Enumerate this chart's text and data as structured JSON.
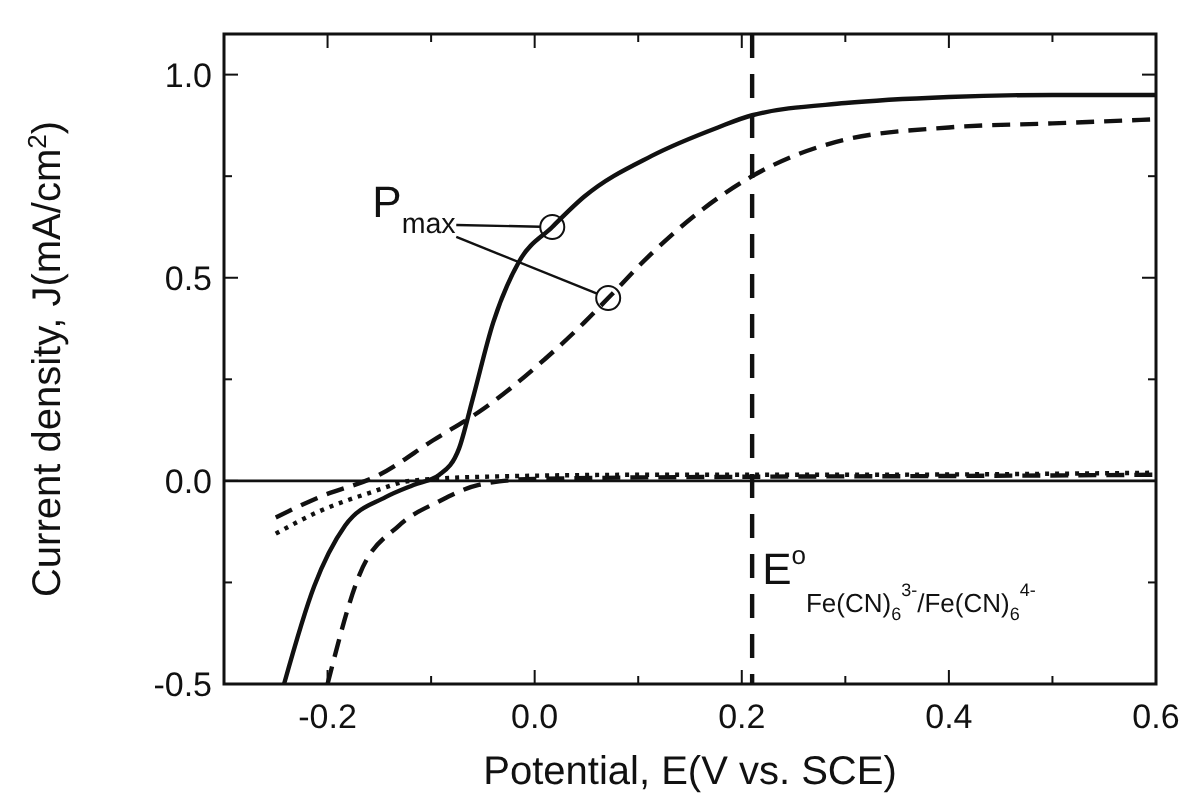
{
  "chart_data": {
    "type": "line",
    "xlabel": "Potential, E(V vs. SCE)",
    "ylabel": "Current density, J(mA/cm$^{2}$)",
    "xlim": [
      -0.3,
      0.6
    ],
    "ylim": [
      -0.5,
      1.1
    ],
    "xticks": [
      {
        "value": -0.2,
        "label": "-0.2"
      },
      {
        "value": -0.1,
        "label": null
      },
      {
        "value": 0,
        "label": "0.0"
      },
      {
        "value": 0.1,
        "label": null
      },
      {
        "value": 0.2,
        "label": "0.2"
      },
      {
        "value": 0.3,
        "label": null
      },
      {
        "value": 0.4,
        "label": "0.4"
      },
      {
        "value": 0.5,
        "label": null
      },
      {
        "value": 0.6,
        "label": "0.6"
      }
    ],
    "yticks": [
      {
        "value": -0.5,
        "label": "-0.5"
      },
      {
        "value": -0.25,
        "label": null
      },
      {
        "value": 0,
        "label": "0.0"
      },
      {
        "value": 0.25,
        "label": null
      },
      {
        "value": 0.5,
        "label": "0.5"
      },
      {
        "value": 0.75,
        "label": null
      },
      {
        "value": 1,
        "label": "1.0"
      }
    ],
    "grid": false,
    "series": [
      {
        "color": "#111111",
        "line_style": "solid",
        "x": [
          -0.242,
          -0.213,
          -0.183,
          -0.144,
          -0.117,
          -0.092,
          -0.073,
          -0.06,
          -0.04,
          -0.015,
          0.017,
          0.048,
          0.113,
          0.177,
          0.21,
          0.3,
          0.4,
          0.5,
          0.6
        ],
        "values": [
          -0.5,
          -0.26,
          -0.11,
          -0.04,
          -0.01,
          0.015,
          0.08,
          0.2,
          0.39,
          0.54,
          0.625,
          0.7,
          0.8,
          0.87,
          0.9,
          0.93,
          0.945,
          0.95,
          0.95
        ]
      },
      {
        "color": "#111111",
        "line_style": "dashed",
        "x": [
          -0.25,
          -0.208,
          -0.15,
          -0.098,
          -0.048,
          0.01,
          0.048,
          0.071,
          0.113,
          0.163,
          0.21,
          0.3,
          0.4,
          0.5,
          0.6
        ],
        "values": [
          -0.09,
          -0.04,
          0.015,
          0.1,
          0.18,
          0.3,
          0.39,
          0.45,
          0.56,
          0.67,
          0.75,
          0.84,
          0.87,
          0.88,
          0.89
        ]
      },
      {
        "color": "#111111",
        "line_style": "dotted",
        "x": [
          -0.25,
          -0.208,
          -0.16,
          -0.12,
          -0.05,
          0.1,
          0.3,
          0.6
        ],
        "values": [
          -0.13,
          -0.075,
          -0.03,
          0,
          0.01,
          0.015,
          0.015,
          0.02
        ]
      },
      {
        "color": "#111111",
        "line_style": "dashed",
        "x": [
          -0.2,
          -0.169,
          -0.131,
          -0.092,
          -0.054,
          0,
          0.2,
          0.4,
          0.6
        ],
        "values": [
          -0.5,
          -0.23,
          -0.11,
          -0.05,
          -0.01,
          0.005,
          0.01,
          0.012,
          0.015
        ]
      },
      {
        "type": "scatter",
        "marker": "circle",
        "color": "#111111",
        "x": [
          0.017,
          0.071
        ],
        "values": [
          0.625,
          0.45
        ]
      }
    ],
    "ref_lines": [
      {
        "axis": "y",
        "value": 0,
        "line_style": "solid",
        "color": "#111111"
      },
      {
        "axis": "x",
        "value": 0.21,
        "line_style": "dashed",
        "color": "#111111",
        "label": "E$^{o}$$_{Fe(CN)}$$_{6}$$^{3-}$$_{/Fe(CN)}$$_{6}$$^{4-}$"
      }
    ],
    "annotations": [
      {
        "text": "P$_{max}$",
        "x": 0.017,
        "y": 0.625
      }
    ]
  }
}
